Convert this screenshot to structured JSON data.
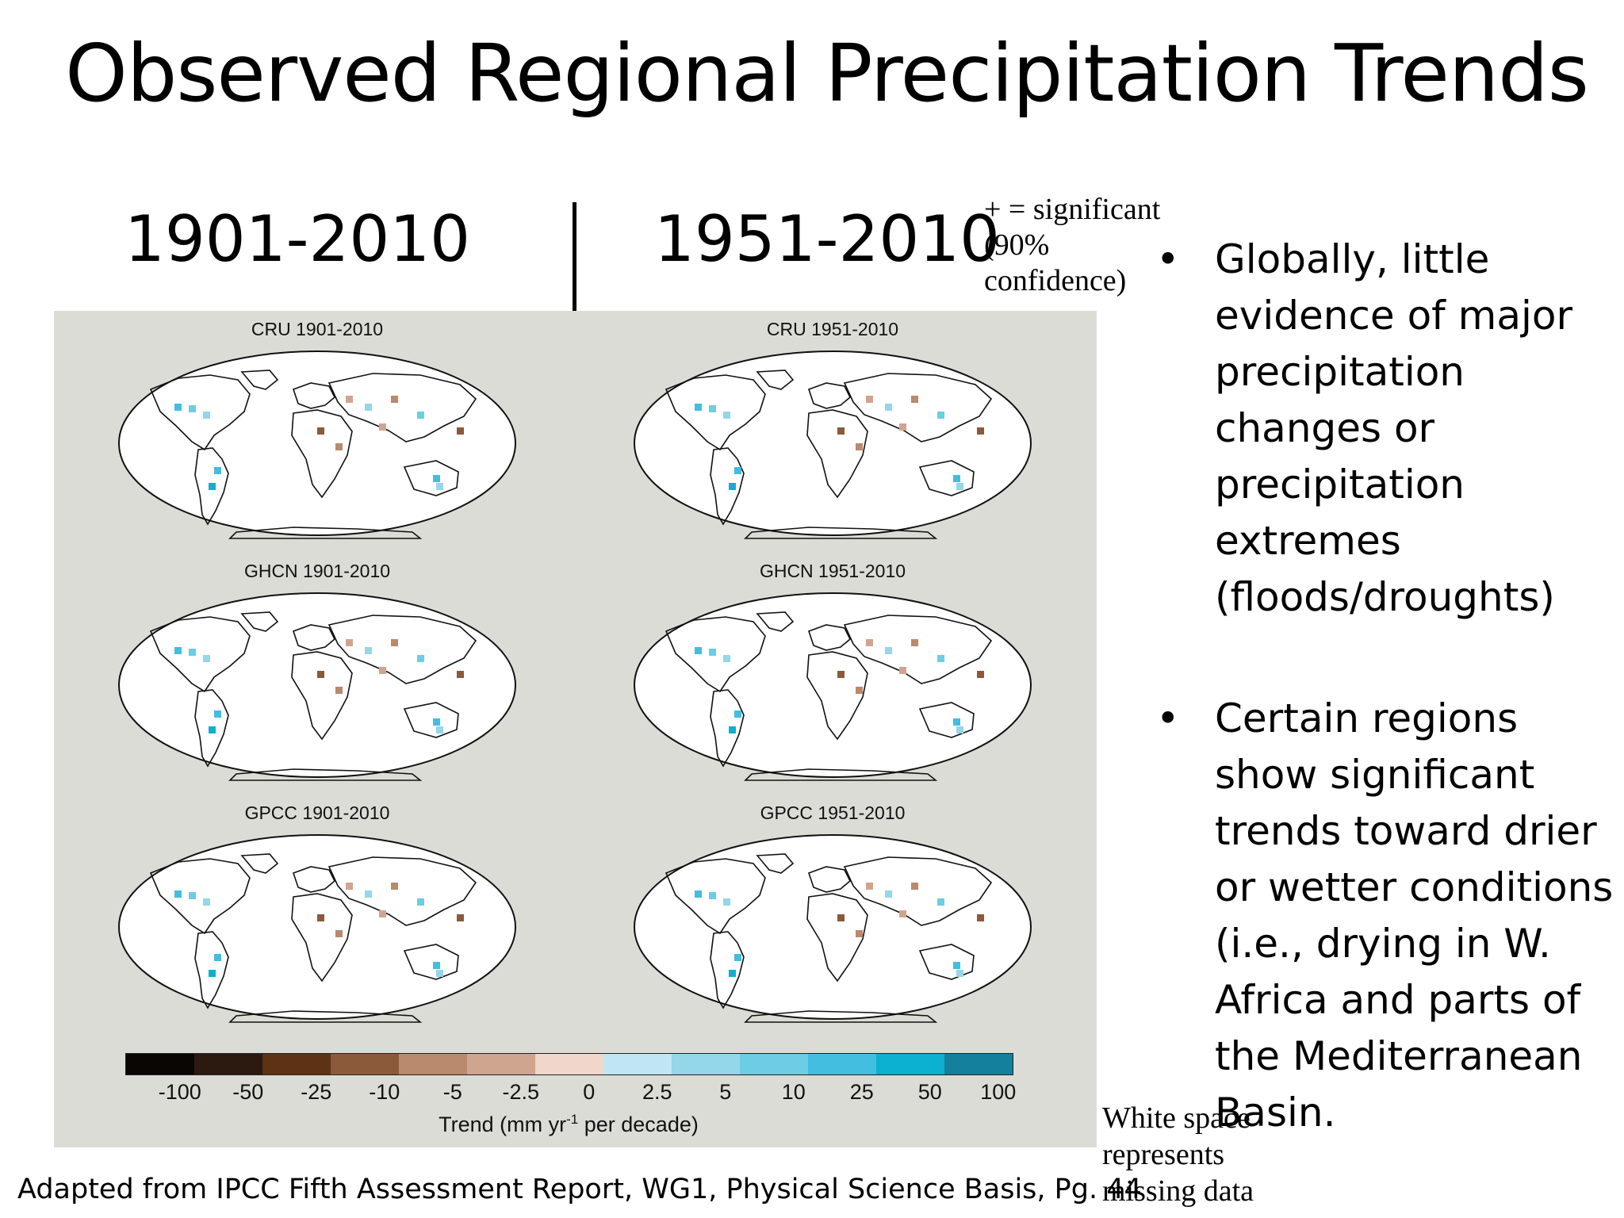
{
  "slide": {
    "title": "Observed Regional Precipitation Trends",
    "period_left": "1901-2010",
    "period_right": "1951-2010",
    "significance_note": [
      "+ = significant",
      "(90%",
      "confidence)"
    ],
    "source": "Adapted from IPCC Fifth Assessment Report, WG1,  Physical Science Basis, Pg. 44",
    "whitespace_note": [
      "White space",
      "represents",
      "missing data"
    ]
  },
  "figure": {
    "panels": [
      {
        "title": "CRU 1901-2010"
      },
      {
        "title": "CRU 1951-2010"
      },
      {
        "title": "GHCN 1901-2010"
      },
      {
        "title": "GHCN 1951-2010"
      },
      {
        "title": "GPCC 1901-2010"
      },
      {
        "title": "GPCC 1951-2010"
      }
    ],
    "colorbar": {
      "colors": [
        "#0a0604",
        "#2c1a10",
        "#5e3314",
        "#8b5a3a",
        "#b98a6c",
        "#cfa590",
        "#f0d6cb",
        "#bfe6f2",
        "#94d6ea",
        "#6ccde4",
        "#43bde0",
        "#0cb0d0",
        "#157f9e"
      ],
      "ticks": [
        "-100",
        "-50",
        "-25",
        "-10",
        "-5",
        "-2.5",
        "0",
        "2.5",
        "5",
        "10",
        "25",
        "50",
        "100"
      ],
      "label_pre": "Trend (mm yr",
      "label_sup": "-1",
      "label_post": " per decade)"
    }
  },
  "bullets": [
    {
      "text": "Globally, little evidence of major precipitation changes or precipitation extremes (floods/droughts)"
    },
    {
      "text": "Certain regions show significant trends toward drier or wetter conditions (i.e., drying in W. Africa and parts of the Mediterranean Basin."
    }
  ],
  "bullet_symbol": "•"
}
